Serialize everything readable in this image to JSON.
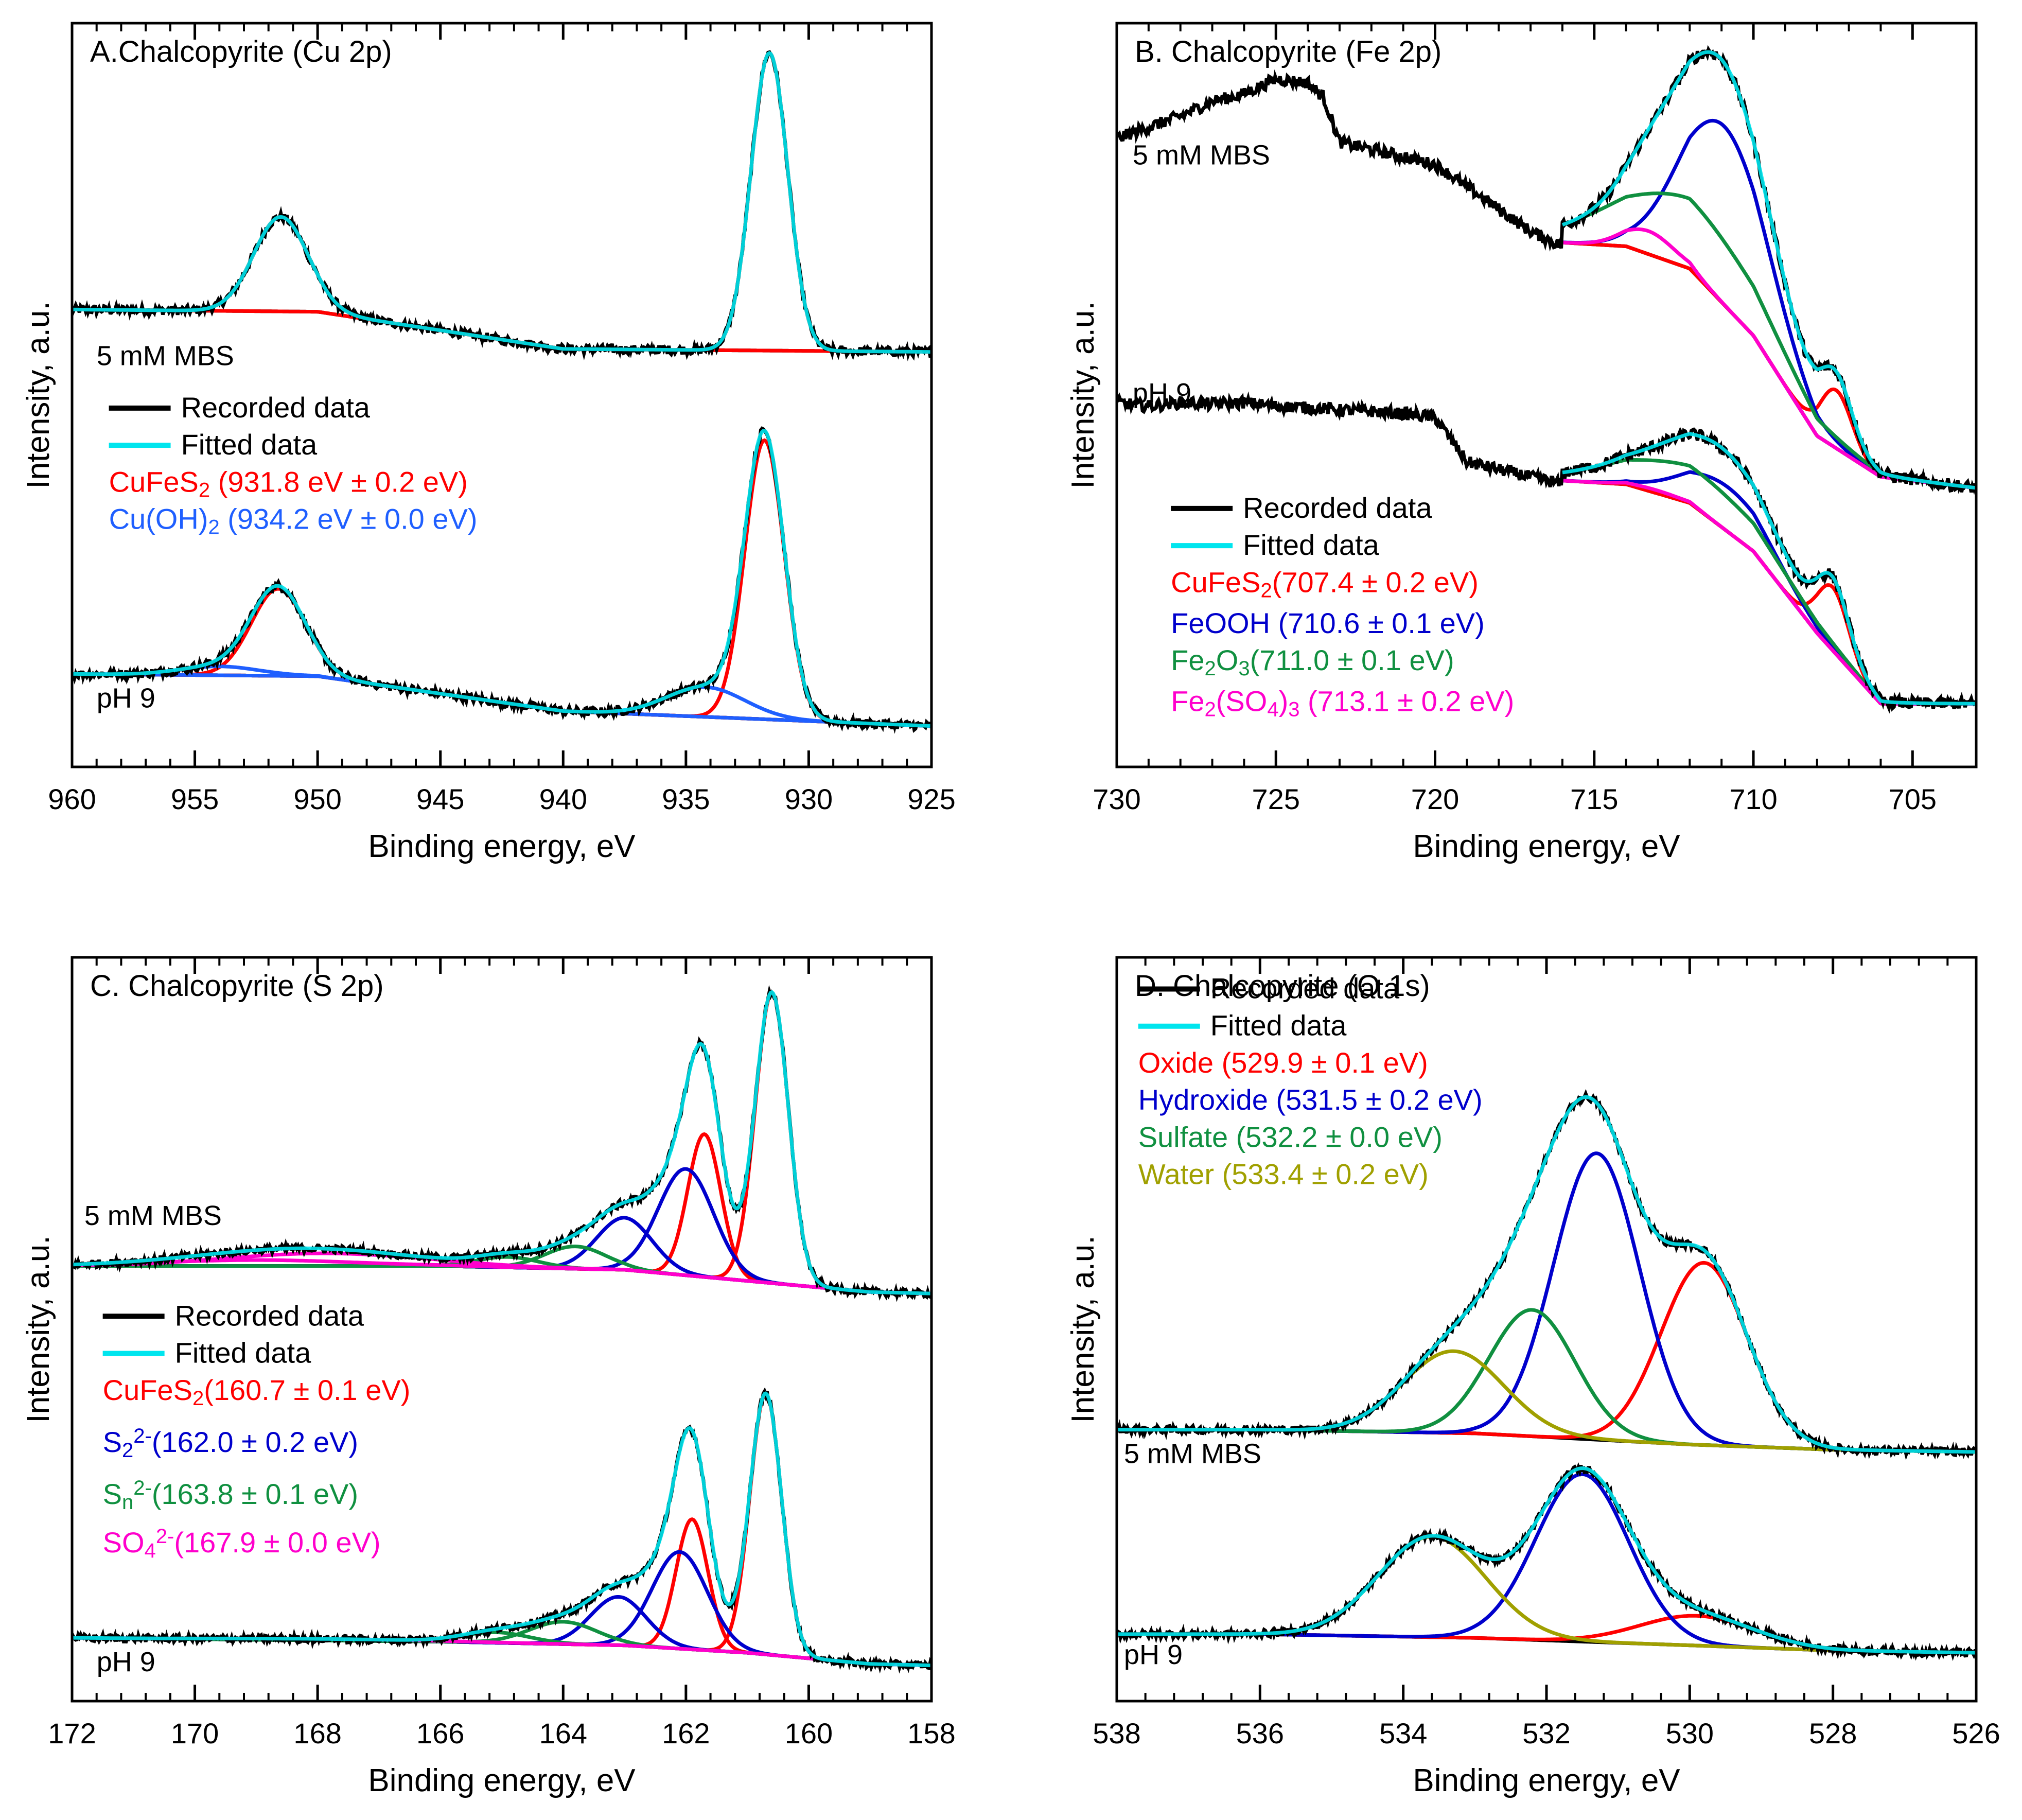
{
  "chart_data": [
    {
      "id": "A",
      "type": "line",
      "title": "A.Chalcopyrite (Cu 2p)",
      "xlabel": "Binding energy, eV",
      "ylabel": "Intensity, a.u.",
      "xlim": [
        960,
        925
      ],
      "xticks": [
        960,
        955,
        950,
        945,
        940,
        935,
        930,
        925
      ],
      "ylim": [
        0,
        1
      ],
      "spectra_labels": [
        {
          "text": "5 mM MBS",
          "x": 959,
          "y": 0.54
        },
        {
          "text": "pH 9",
          "x": 959,
          "y": 0.08
        }
      ],
      "legend": [
        {
          "label": "Recorded data",
          "color": "#000000",
          "line": true
        },
        {
          "label": "Fitted data",
          "color": "#00e5ee",
          "line": true
        },
        {
          "label": "CuFeS",
          "sub": "2",
          "rest": " (931.8 eV ± 0.2 eV)",
          "color": "#ff0000"
        },
        {
          "label": "Cu(OH)",
          "sub": "2",
          "rest": " (934.2 eV ± 0.0 eV)",
          "color": "#1f5fff"
        }
      ],
      "legend_rows_y": [
        0.47,
        0.42,
        0.37,
        0.32
      ],
      "legend_x": 958.5,
      "spectra": [
        {
          "name": "5 mM MBS",
          "noise": 0.006,
          "background": [
            [
              960,
              0.615
            ],
            [
              950,
              0.612
            ],
            [
              940,
              0.562
            ],
            [
              925,
              0.558
            ]
          ],
          "components": [
            {
              "name": "CuFeS2 2p3/2",
              "color": "#ff0000",
              "center": 931.6,
              "height": 0.4,
              "sigma": 0.75
            },
            {
              "name": "CuFeS2 2p1/2",
              "color": "#ff0000",
              "center": 951.5,
              "height": 0.127,
              "sigma": 1.1
            }
          ]
        },
        {
          "name": "pH 9",
          "noise": 0.006,
          "background": [
            [
              960,
              0.125
            ],
            [
              950,
              0.122
            ],
            [
              940,
              0.075
            ],
            [
              925,
              0.055
            ]
          ],
          "components": [
            {
              "name": "CuFeS2 2p3/2",
              "color": "#ff0000",
              "center": 931.8,
              "height": 0.375,
              "sigma": 0.8
            },
            {
              "name": "CuFeS2 2p1/2",
              "color": "#ff0000",
              "center": 951.6,
              "height": 0.117,
              "sigma": 1.1
            },
            {
              "name": "Cu(OH)2 2p3/2",
              "color": "#1f5fff",
              "center": 934.2,
              "height": 0.04,
              "sigma": 1.6
            },
            {
              "name": "Cu(OH)2 2p1/2",
              "color": "#1f5fff",
              "center": 954.0,
              "height": 0.012,
              "sigma": 1.6
            }
          ]
        }
      ]
    },
    {
      "id": "B",
      "type": "line",
      "title": "B. Chalcopyrite (Fe 2p)",
      "xlabel": "Binding energy, eV",
      "ylabel": "Intensity, a.u.",
      "xlim": [
        730,
        703
      ],
      "xticks": [
        730,
        725,
        720,
        715,
        710,
        705
      ],
      "ylim": [
        0,
        1
      ],
      "spectra_labels": [
        {
          "text": "5 mM MBS",
          "x": 729.5,
          "y": 0.81
        },
        {
          "text": "pH 9",
          "x": 729.5,
          "y": 0.49
        }
      ],
      "legend": [
        {
          "label": "Recorded data",
          "color": "#000000",
          "line": true
        },
        {
          "label": "Fitted data",
          "color": "#00e5ee",
          "line": true
        },
        {
          "label": "CuFeS",
          "sub": "2",
          "rest": "(707.4 ± 0.2 eV)",
          "color": "#ff0000"
        },
        {
          "label": "FeOOH (710.6 ± 0.1 eV)",
          "color": "#0000cc"
        },
        {
          "label": "Fe",
          "sub": "2",
          "mid": "O",
          "sub2": "3",
          "rest": "(711.0 ± 0.1 eV)",
          "color": "#109040"
        },
        {
          "label": "Fe",
          "sub": "2",
          "mid": "(SO",
          "sub2": "4",
          "rest": ")",
          "sub3": "3",
          "rest2": " (713.1 ± 0.2 eV)",
          "color": "#ff00cc"
        }
      ],
      "legend_rows_y": [
        0.335,
        0.285,
        0.235,
        0.18,
        0.13,
        0.075
      ],
      "legend_x": 728.3,
      "spectra": [
        {
          "name": "5 mM MBS",
          "noise": 0.008,
          "raw_points": [
            [
              730,
              0.845
            ],
            [
              729,
              0.86
            ],
            [
              728,
              0.875
            ],
            [
              727,
              0.895
            ],
            [
              726,
              0.905
            ],
            [
              725,
              0.925
            ],
            [
              724,
              0.92
            ],
            [
              723.5,
              0.9
            ],
            [
              723,
              0.84
            ],
            [
              722,
              0.83
            ],
            [
              721,
              0.82
            ],
            [
              720,
              0.81
            ],
            [
              719,
              0.78
            ],
            [
              718,
              0.75
            ],
            [
              717,
              0.72
            ],
            [
              716,
              0.7
            ]
          ],
          "background": [
            [
              716,
              0.705
            ],
            [
              714,
              0.7
            ],
            [
              712,
              0.67
            ],
            [
              710,
              0.58
            ],
            [
              708,
              0.445
            ],
            [
              706,
              0.39
            ],
            [
              703,
              0.375
            ]
          ],
          "components": [
            {
              "name": "CuFeS2",
              "color": "#ff0000",
              "center": 707.4,
              "height": 0.078,
              "sigma": 0.5
            },
            {
              "name": "FeOOH",
              "color": "#0000cc",
              "center": 710.9,
              "height": 0.24,
              "sigma": 1.4
            },
            {
              "name": "Fe2O3",
              "color": "#109040",
              "center": 712.0,
              "height": 0.094,
              "sigma": 2.4
            },
            {
              "name": "Fe2(SO4)3",
              "color": "#ff00cc",
              "center": 713.3,
              "height": 0.031,
              "sigma": 0.8
            }
          ]
        },
        {
          "name": "pH 9",
          "noise": 0.008,
          "raw_points": [
            [
              730,
              0.49
            ],
            [
              729,
              0.485
            ],
            [
              728,
              0.49
            ],
            [
              727,
              0.488
            ],
            [
              726,
              0.49
            ],
            [
              725,
              0.485
            ],
            [
              724,
              0.483
            ],
            [
              723,
              0.48
            ],
            [
              722,
              0.478
            ],
            [
              721,
              0.475
            ],
            [
              720,
              0.47
            ],
            [
              719.5,
              0.44
            ],
            [
              719,
              0.41
            ],
            [
              718,
              0.4
            ],
            [
              717,
              0.39
            ],
            [
              716,
              0.38
            ]
          ],
          "background": [
            [
              716,
              0.385
            ],
            [
              714,
              0.38
            ],
            [
              712,
              0.355
            ],
            [
              710,
              0.29
            ],
            [
              708,
              0.18
            ],
            [
              706,
              0.085
            ],
            [
              703,
              0.085
            ]
          ],
          "components": [
            {
              "name": "CuFeS2",
              "color": "#ff0000",
              "center": 707.5,
              "height": 0.085,
              "sigma": 0.5
            },
            {
              "name": "FeOOH",
              "color": "#0000cc",
              "center": 710.8,
              "height": 0.06,
              "sigma": 1.4
            },
            {
              "name": "Fe2O3",
              "color": "#109040",
              "center": 711.8,
              "height": 0.05,
              "sigma": 2.4
            },
            {
              "name": "Fe2(SO4)3",
              "color": "#ff00cc",
              "center": 713.1,
              "height": 0.004,
              "sigma": 0.8
            }
          ]
        }
      ]
    },
    {
      "id": "C",
      "type": "line",
      "title": "C. Chalcopyrite (S 2p)",
      "xlabel": "Binding energy, eV",
      "ylabel": "Intensity, a.u.",
      "xlim": [
        172,
        158
      ],
      "xticks": [
        172,
        170,
        168,
        166,
        164,
        162,
        160,
        158
      ],
      "ylim": [
        0,
        1
      ],
      "spectra_labels": [
        {
          "text": "5 mM MBS",
          "x": 171.8,
          "y": 0.64
        },
        {
          "text": "pH 9",
          "x": 171.6,
          "y": 0.04
        }
      ],
      "legend": [
        {
          "label": "Recorded data",
          "color": "#000000",
          "line": true
        },
        {
          "label": "Fitted data",
          "color": "#00e5ee",
          "line": true
        },
        {
          "label": "CuFeS",
          "sub": "2",
          "rest": "(160.7 ± 0.1 eV)",
          "color": "#ff0000"
        },
        {
          "label": "S",
          "sub": "2",
          "sup": "2-",
          "rest": "(162.0 ± 0.2 eV)",
          "color": "#0000cc"
        },
        {
          "label": "S",
          "sub": "n",
          "sup": "2-",
          "rest": "(163.8 ± 0.1 eV)",
          "color": "#109040"
        },
        {
          "label": "SO",
          "sub": "4",
          "sup": "2-",
          "rest": "(167.9 ± 0.0 eV)",
          "color": "#ff00cc"
        }
      ],
      "legend_rows_y": [
        0.505,
        0.455,
        0.405,
        0.335,
        0.265,
        0.2
      ],
      "legend_x": 171.5,
      "spectra": [
        {
          "name": "5 mM MBS",
          "noise": 0.005,
          "background": [
            [
              172,
              0.585
            ],
            [
              166,
              0.585
            ],
            [
              163,
              0.58
            ],
            [
              161,
              0.565
            ],
            [
              159,
              0.55
            ],
            [
              158,
              0.548
            ]
          ],
          "components": [
            {
              "name": "CuFeS2 2p3/2",
              "color": "#ff0000",
              "center": 160.6,
              "height": 0.39,
              "sigma": 0.27
            },
            {
              "name": "CuFeS2 2p1/2",
              "color": "#ff0000",
              "center": 161.7,
              "height": 0.192,
              "sigma": 0.27
            },
            {
              "name": "S2 2p3/2",
              "color": "#0000cc",
              "center": 162.0,
              "height": 0.143,
              "sigma": 0.45
            },
            {
              "name": "S2 2p1/2",
              "color": "#0000cc",
              "center": 163.0,
              "height": 0.07,
              "sigma": 0.45
            },
            {
              "name": "Sn 2p3/2",
              "color": "#109040",
              "center": 163.8,
              "height": 0.03,
              "sigma": 0.5
            },
            {
              "name": "Sn 2p1/2",
              "color": "#109040",
              "center": 164.9,
              "height": 0.014,
              "sigma": 0.5
            },
            {
              "name": "SO4 2p3/2",
              "color": "#ff00cc",
              "center": 167.9,
              "height": 0.017,
              "sigma": 1.6
            },
            {
              "name": "SO4 2p1/2",
              "color": "#ff00cc",
              "center": 169.0,
              "height": 0.008,
              "sigma": 1.6
            }
          ]
        },
        {
          "name": "pH 9",
          "noise": 0.005,
          "background": [
            [
              172,
              0.085
            ],
            [
              166,
              0.08
            ],
            [
              163,
              0.075
            ],
            [
              161,
              0.065
            ],
            [
              159,
              0.05
            ],
            [
              158,
              0.048
            ]
          ],
          "components": [
            {
              "name": "CuFeS2 2p3/2",
              "color": "#ff0000",
              "center": 160.7,
              "height": 0.35,
              "sigma": 0.26
            },
            {
              "name": "CuFeS2 2p1/2",
              "color": "#ff0000",
              "center": 161.9,
              "height": 0.175,
              "sigma": 0.26
            },
            {
              "name": "S2 2p3/2",
              "color": "#0000cc",
              "center": 162.1,
              "height": 0.13,
              "sigma": 0.45
            },
            {
              "name": "S2 2p1/2",
              "color": "#0000cc",
              "center": 163.1,
              "height": 0.065,
              "sigma": 0.45
            },
            {
              "name": "Sn 2p3/2",
              "color": "#109040",
              "center": 164.0,
              "height": 0.03,
              "sigma": 0.55
            },
            {
              "name": "Sn 2p1/2",
              "color": "#109040",
              "center": 165.1,
              "height": 0.014,
              "sigma": 0.55
            },
            {
              "name": "SO4 2p3/2",
              "color": "#ff00cc",
              "center": 167.9,
              "height": 0.002,
              "sigma": 1.6
            }
          ]
        }
      ]
    },
    {
      "id": "D",
      "type": "line",
      "title": "D. Chalcopyrite (O 1s)",
      "xlabel": "Binding energy, eV",
      "ylabel": "Intensity, a.u.",
      "xlim": [
        538,
        526
      ],
      "xticks": [
        538,
        536,
        534,
        532,
        530,
        528,
        526
      ],
      "ylim": [
        0,
        1
      ],
      "spectra_labels": [
        {
          "text": "5 mM MBS",
          "x": 537.9,
          "y": 0.32
        },
        {
          "text": "pH 9",
          "x": 537.9,
          "y": 0.05
        }
      ],
      "legend": [
        {
          "label": "Recorded data",
          "color": "#000000",
          "line": true
        },
        {
          "label": "Fitted data",
          "color": "#00e5ee",
          "line": true
        },
        {
          "label": "Oxide (529.9 ± 0.1 eV)",
          "color": "#ff0000"
        },
        {
          "label": "Hydroxide (531.5 ± 0.2 eV)",
          "color": "#0000cc"
        },
        {
          "label": "Sulfate (532.2 ± 0.0 eV)",
          "color": "#109040"
        },
        {
          "label": "Water (533.4 ± 0.2 eV)",
          "color": "#a0a000"
        }
      ],
      "legend_rows_y": [
        0.945,
        0.895,
        0.845,
        0.795,
        0.745,
        0.695
      ],
      "legend_x": 537.7,
      "spectra": [
        {
          "name": "5 mM MBS",
          "noise": 0.005,
          "background": [
            [
              538,
              0.365
            ],
            [
              536,
              0.365
            ],
            [
              533,
              0.36
            ],
            [
              530,
              0.345
            ],
            [
              528,
              0.338
            ],
            [
              526,
              0.335
            ]
          ],
          "components": [
            {
              "name": "Oxide",
              "color": "#ff0000",
              "center": 529.8,
              "height": 0.245,
              "sigma": 0.6
            },
            {
              "name": "Hydroxide",
              "color": "#0000cc",
              "center": 531.3,
              "height": 0.385,
              "sigma": 0.6
            },
            {
              "name": "Sulfate",
              "color": "#109040",
              "center": 532.2,
              "height": 0.17,
              "sigma": 0.6
            },
            {
              "name": "Water",
              "color": "#a0a000",
              "center": 533.3,
              "height": 0.11,
              "sigma": 0.7
            }
          ]
        },
        {
          "name": "pH 9",
          "noise": 0.005,
          "background": [
            [
              538,
              0.09
            ],
            [
              536,
              0.09
            ],
            [
              533,
              0.085
            ],
            [
              530,
              0.075
            ],
            [
              528,
              0.068
            ],
            [
              526,
              0.065
            ]
          ],
          "components": [
            {
              "name": "Oxide",
              "color": "#ff0000",
              "center": 529.9,
              "height": 0.04,
              "sigma": 0.8
            },
            {
              "name": "Hydroxide",
              "color": "#0000cc",
              "center": 531.5,
              "height": 0.225,
              "sigma": 0.65
            },
            {
              "name": "Water",
              "color": "#a0a000",
              "center": 533.6,
              "height": 0.135,
              "sigma": 0.75
            }
          ]
        }
      ]
    }
  ]
}
